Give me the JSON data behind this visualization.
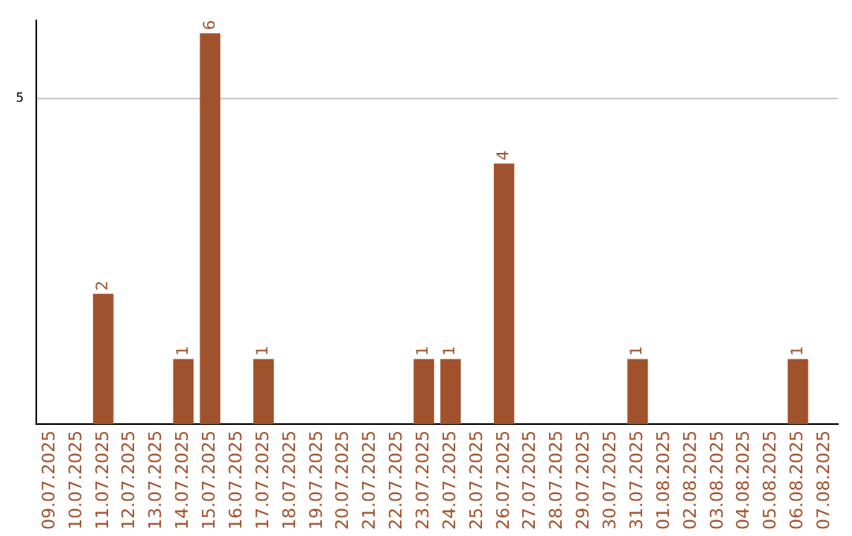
{
  "chart_data": {
    "type": "bar",
    "categories": [
      "09.07.2025",
      "10.07.2025",
      "11.07.2025",
      "12.07.2025",
      "13.07.2025",
      "14.07.2025",
      "15.07.2025",
      "16.07.2025",
      "17.07.2025",
      "18.07.2025",
      "19.07.2025",
      "20.07.2025",
      "21.07.2025",
      "22.07.2025",
      "23.07.2025",
      "24.07.2025",
      "25.07.2025",
      "26.07.2025",
      "27.07.2025",
      "28.07.2025",
      "29.07.2025",
      "30.07.2025",
      "31.07.2025",
      "01.08.2025",
      "02.08.2025",
      "03.08.2025",
      "04.08.2025",
      "05.08.2025",
      "06.08.2025",
      "07.08.2025"
    ],
    "values": [
      0,
      0,
      2,
      0,
      0,
      1,
      6,
      0,
      1,
      0,
      0,
      0,
      0,
      0,
      1,
      1,
      0,
      4,
      0,
      0,
      0,
      0,
      1,
      0,
      0,
      0,
      0,
      0,
      1,
      0
    ],
    "value_labels": [
      null,
      null,
      "2",
      null,
      null,
      "1",
      "6",
      null,
      "1",
      null,
      null,
      null,
      null,
      null,
      "1",
      "1",
      null,
      "4",
      null,
      null,
      null,
      null,
      "1",
      null,
      null,
      null,
      null,
      null,
      "1",
      null
    ],
    "color": "#a0522d",
    "ylim": [
      0,
      6.2
    ],
    "yticks": [
      5
    ],
    "grid": "y",
    "legend": false
  }
}
